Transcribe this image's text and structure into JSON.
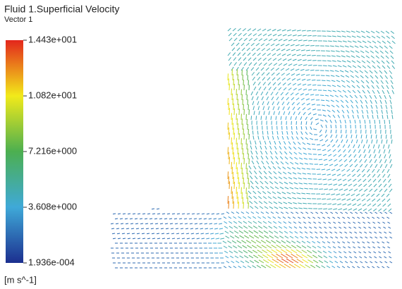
{
  "chart_data": {
    "type": "vector",
    "title": "Fluid 1.Superficial Velocity",
    "subtitle": "Vector 1",
    "unit_label": "[m s^-1]",
    "colorbar": {
      "lim": [
        0.0001936,
        14.43
      ],
      "ticks": [
        {
          "value": 0.0001936,
          "label": "1.936e-004"
        },
        {
          "value": 3.608,
          "label": "3.608e+000"
        },
        {
          "value": 7.216,
          "label": "7.216e+000"
        },
        {
          "value": 10.82,
          "label": "1.082e+001"
        },
        {
          "value": 14.43,
          "label": "1.443e+001"
        }
      ],
      "colors": [
        "#1c2f8f",
        "#3fa9d8",
        "#4caf50",
        "#f2ea1a",
        "#e3261c"
      ]
    }
  }
}
